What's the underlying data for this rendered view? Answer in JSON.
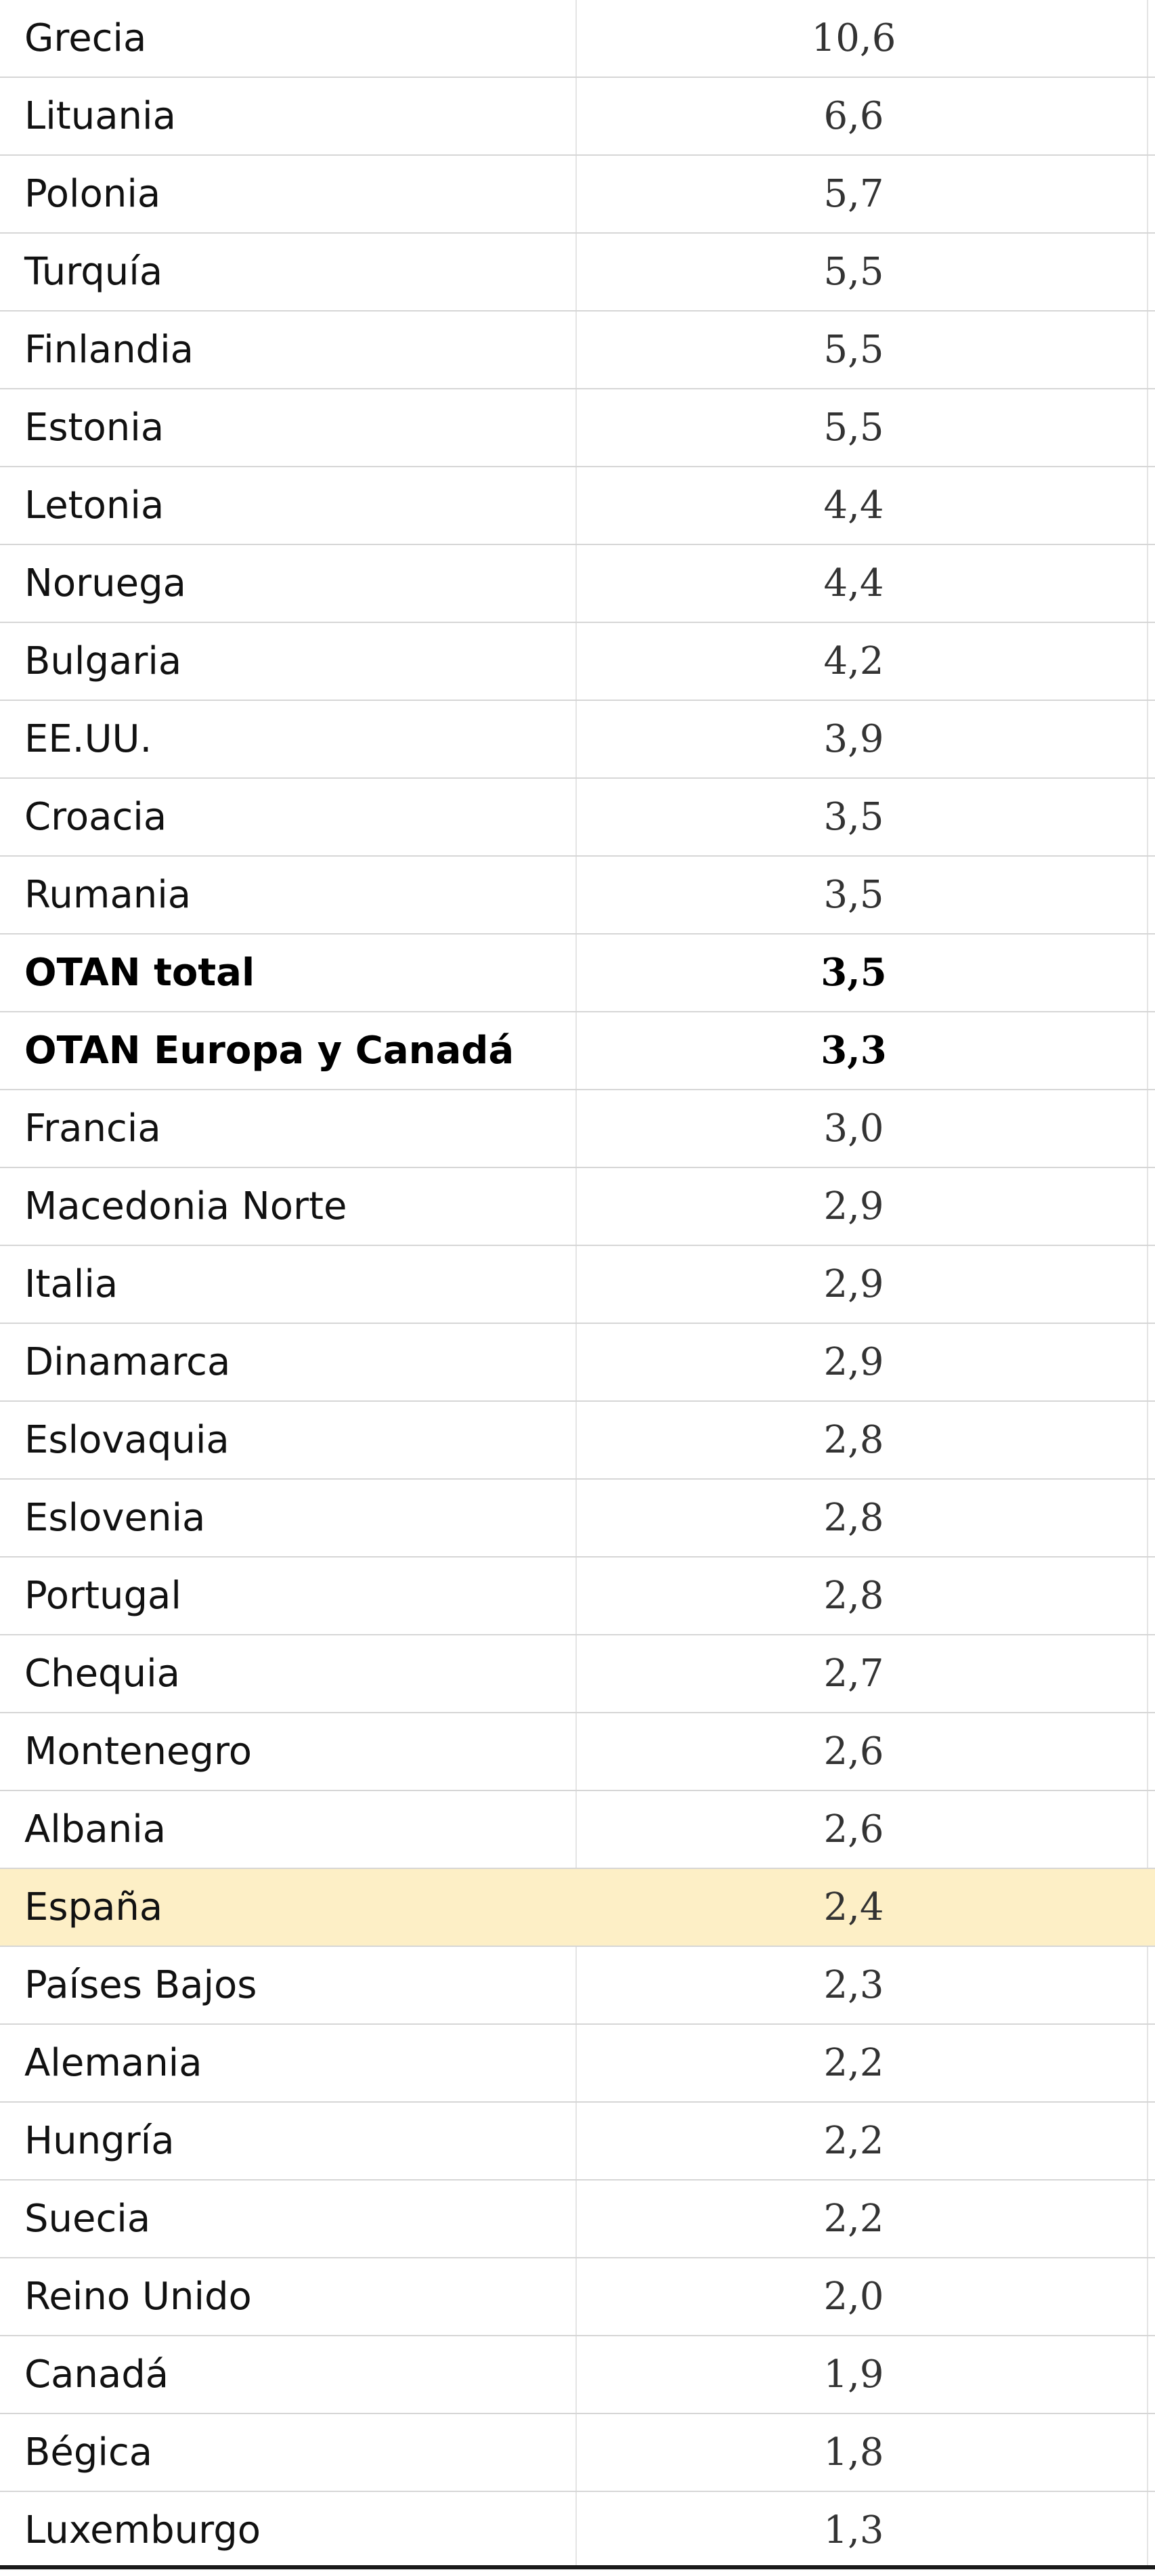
{
  "table": {
    "rows": [
      {
        "name": "Grecia",
        "value": "10,6"
      },
      {
        "name": "Lituania",
        "value": "6,6"
      },
      {
        "name": "Polonia",
        "value": "5,7"
      },
      {
        "name": "Turquía",
        "value": "5,5"
      },
      {
        "name": "Finlandia",
        "value": "5,5"
      },
      {
        "name": "Estonia",
        "value": "5,5"
      },
      {
        "name": "Letonia",
        "value": "4,4"
      },
      {
        "name": "Noruega",
        "value": "4,4"
      },
      {
        "name": "Bulgaria",
        "value": "4,2"
      },
      {
        "name": "EE.UU.",
        "value": "3,9"
      },
      {
        "name": "Croacia",
        "value": "3,5"
      },
      {
        "name": "Rumania",
        "value": "3,5"
      },
      {
        "name": "OTAN total",
        "value": "3,5"
      },
      {
        "name": "OTAN Europa y Canadá",
        "value": "3,3"
      },
      {
        "name": "Francia",
        "value": "3,0"
      },
      {
        "name": "Macedonia Norte",
        "value": "2,9"
      },
      {
        "name": "Italia",
        "value": "2,9"
      },
      {
        "name": "Dinamarca",
        "value": "2,9"
      },
      {
        "name": "Eslovaquia",
        "value": "2,8"
      },
      {
        "name": "Eslovenia",
        "value": "2,8"
      },
      {
        "name": "Portugal",
        "value": "2,8"
      },
      {
        "name": "Chequia",
        "value": "2,7"
      },
      {
        "name": "Montenegro",
        "value": "2,6"
      },
      {
        "name": "Albania",
        "value": "2,6"
      },
      {
        "name": "España",
        "value": "2,4"
      },
      {
        "name": "Países Bajos",
        "value": "2,3"
      },
      {
        "name": "Alemania",
        "value": "2,2"
      },
      {
        "name": "Hungría",
        "value": "2,2"
      },
      {
        "name": "Suecia",
        "value": "2,2"
      },
      {
        "name": "Reino Unido",
        "value": "2,0"
      },
      {
        "name": "Canadá",
        "value": "1,9"
      },
      {
        "name": "Bégica",
        "value": "1,8"
      },
      {
        "name": "Luxemburgo",
        "value": "1,3"
      }
    ],
    "bold_rows": [
      "OTAN total",
      "OTAN Europa y Canadá"
    ],
    "highlighted_row": "España",
    "highlight_color": "#fdefc6"
  }
}
